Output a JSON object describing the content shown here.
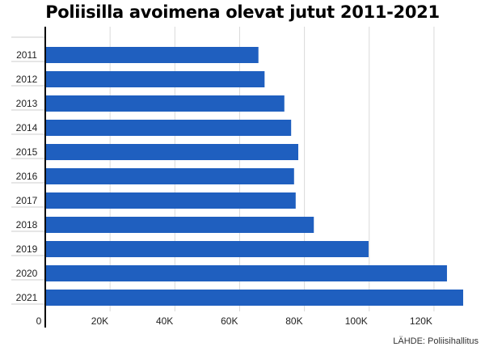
{
  "title": "Poliisilla avoimena olevat jutut  2011-2021",
  "source": "LÄHDE: Poliisihallitus",
  "chart_data": {
    "type": "bar",
    "orientation": "horizontal",
    "categories": [
      "2011",
      "2012",
      "2013",
      "2014",
      "2015",
      "2016",
      "2017",
      "2018",
      "2019",
      "2020",
      "2021"
    ],
    "values": [
      65800,
      67700,
      73800,
      75900,
      78100,
      76800,
      77300,
      82900,
      99800,
      124000,
      129000
    ],
    "xlim": [
      0,
      130000
    ],
    "xticks": [
      0,
      20000,
      40000,
      60000,
      80000,
      100000,
      120000
    ],
    "xtick_labels": [
      "0",
      "20K",
      "40K",
      "60K",
      "80K",
      "100K",
      "120K"
    ],
    "grid": true,
    "bar_color": "#1f5fbf"
  }
}
